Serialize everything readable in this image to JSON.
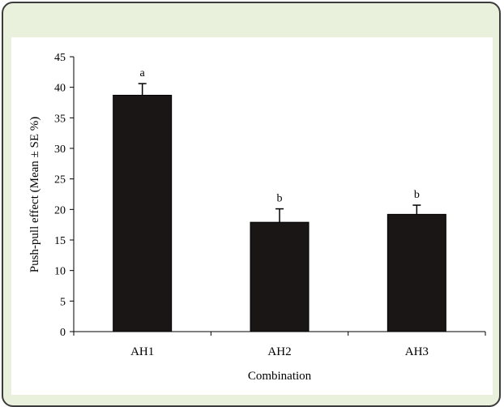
{
  "colors": {
    "frame_background": "#e9f0dc",
    "frame_border": "#3c3c3c",
    "plot_background": "#ffffff",
    "bar_fill": "#1a1616"
  },
  "chart_data": {
    "type": "bar",
    "categories": [
      "AH1",
      "AH2",
      "AH3"
    ],
    "values": [
      38.7,
      17.9,
      19.2
    ],
    "errors": [
      1.9,
      2.2,
      1.5
    ],
    "significance_letters": [
      "a",
      "b",
      "b"
    ],
    "xlabel": "Combination",
    "ylabel": "Push-pull effect (Mean ± SE %)",
    "ylim": [
      0,
      45
    ],
    "yticks": [
      "0",
      "5",
      "10",
      "15",
      "20",
      "25",
      "30",
      "35",
      "40",
      "45"
    ],
    "grid": false,
    "legend": false
  }
}
